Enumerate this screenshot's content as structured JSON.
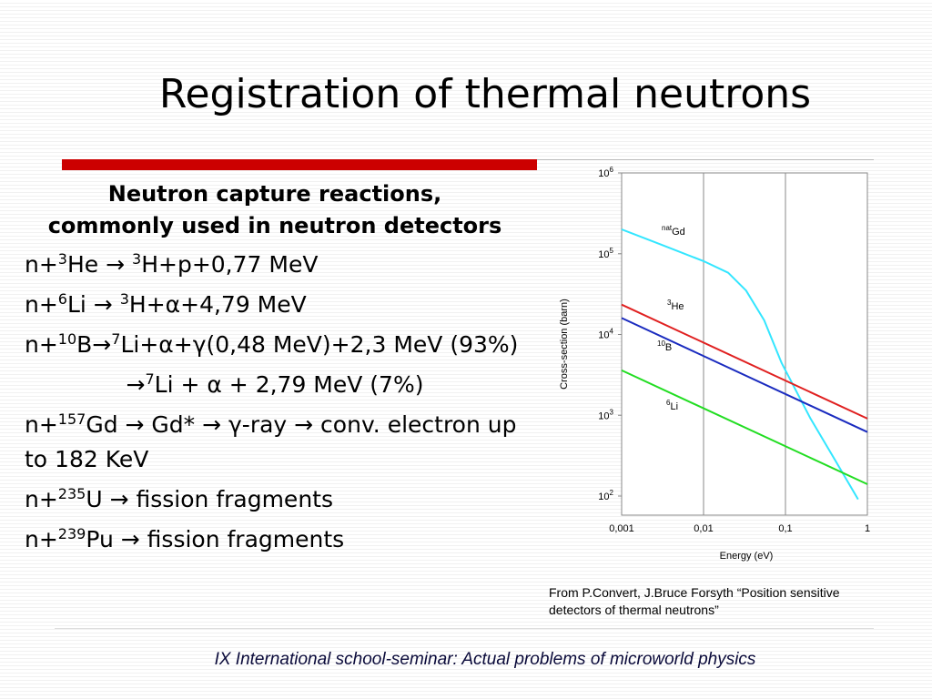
{
  "title": "Registration of thermal neutrons",
  "subtitle": "Neutron capture reactions, commonly used in neutron detectors",
  "reactions": [
    [
      {
        "text": "n+"
      },
      {
        "text": "3",
        "sup": true
      },
      {
        "text": "He → "
      },
      {
        "text": "3",
        "sup": true
      },
      {
        "text": "H+p+0,77 MeV"
      }
    ],
    [
      {
        "text": "n+"
      },
      {
        "text": "6",
        "sup": true
      },
      {
        "text": "Li → "
      },
      {
        "text": "3",
        "sup": true
      },
      {
        "text": "H+α+4,79 MeV"
      }
    ],
    [
      {
        "text": "n+"
      },
      {
        "text": "10",
        "sup": true
      },
      {
        "text": "B→"
      },
      {
        "text": "7",
        "sup": true
      },
      {
        "text": "Li+α+γ(0,48 MeV)+2,3 MeV (93%)"
      }
    ],
    [
      {
        "text": "→"
      },
      {
        "text": "7",
        "sup": true
      },
      {
        "text": "Li + α + 2,79 MeV (7%)"
      }
    ],
    [
      {
        "text": "n+"
      },
      {
        "text": "157",
        "sup": true
      },
      {
        "text": "Gd → Gd* → γ-ray → conv. electron up to 182 KeV"
      }
    ],
    [
      {
        "text": "n+"
      },
      {
        "text": "235",
        "sup": true
      },
      {
        "text": "U → fission fragments"
      }
    ],
    [
      {
        "text": "n+"
      },
      {
        "text": "239",
        "sup": true
      },
      {
        "text": "Pu → fission fragments"
      }
    ]
  ],
  "chart_data": {
    "type": "line",
    "xlabel": "Energy (eV)",
    "ylabel": "Cross-section (barn)",
    "xlog": true,
    "ylog": true,
    "xlim": [
      0.001,
      1
    ],
    "ylim": [
      58,
      1000000
    ],
    "xticks": [
      {
        "value": 0.001,
        "label": "0,001"
      },
      {
        "value": 0.01,
        "label": "0,01"
      },
      {
        "value": 0.1,
        "label": "0,1"
      },
      1
    ],
    "yticks": [
      {
        "value": 100,
        "label": "10",
        "sup": "2"
      },
      {
        "value": 1000,
        "label": "10",
        "sup": "3"
      },
      {
        "value": 10000,
        "label": "10",
        "sup": "4"
      },
      {
        "value": 100000,
        "label": "10",
        "sup": "5"
      },
      {
        "value": 1000000,
        "label": "10",
        "sup": "6"
      }
    ],
    "xgrid": true,
    "series": [
      {
        "name": "Gd",
        "prefix": "nat",
        "color": "#33e6ff",
        "x": [
          0.001,
          0.003,
          0.01,
          0.02,
          0.033,
          0.055,
          0.09,
          0.2,
          0.43,
          0.77
        ],
        "values": [
          200000,
          130000,
          81000,
          58000,
          35000,
          15000,
          4400,
          930,
          250,
          91
        ]
      },
      {
        "name": "He",
        "prefix": "3",
        "color": "#e02020",
        "x": [
          0.001,
          1
        ],
        "values": [
          23400,
          910
        ]
      },
      {
        "name": "B",
        "prefix": "10",
        "color": "#1a2bbf",
        "x": [
          0.001,
          1
        ],
        "values": [
          16000,
          620
        ]
      },
      {
        "name": "Li",
        "prefix": "6",
        "color": "#22dd22",
        "x": [
          0.001,
          1
        ],
        "values": [
          3600,
          140
        ]
      }
    ]
  },
  "caption": "From P.Convert, J.Bruce Forsyth “Position sensitive detectors of thermal neutrons”",
  "footer": "IX International school-seminar: Actual problems of microworld physics"
}
